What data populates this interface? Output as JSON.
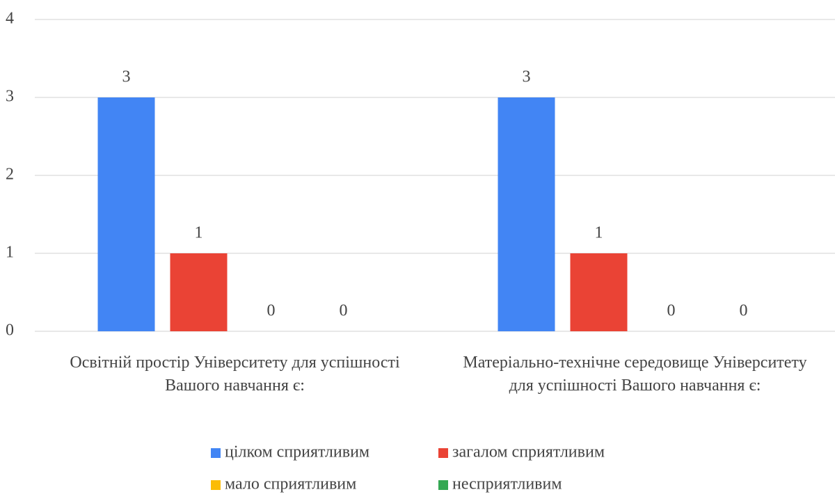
{
  "chart_data": {
    "type": "bar",
    "categories": [
      "Освітній простір Університету для успішності Вашого навчання є:",
      "Матеріально-технічне середовище Університету для успішності Вашого навчання є:"
    ],
    "series": [
      {
        "name": "цілком сприятливим",
        "color": "#4285f4",
        "values": [
          3,
          3
        ]
      },
      {
        "name": "загалом сприятливим",
        "color": "#ea4335",
        "values": [
          1,
          1
        ]
      },
      {
        "name": "мало сприятливим",
        "color": "#fbbc04",
        "values": [
          0,
          0
        ]
      },
      {
        "name": "несприятливим",
        "color": "#34a853",
        "values": [
          0,
          0
        ]
      }
    ],
    "ylim": [
      0,
      4
    ],
    "yticks": [
      0,
      1,
      2,
      3,
      4
    ],
    "grid": true,
    "data_labels": true,
    "legend": "bottom"
  }
}
